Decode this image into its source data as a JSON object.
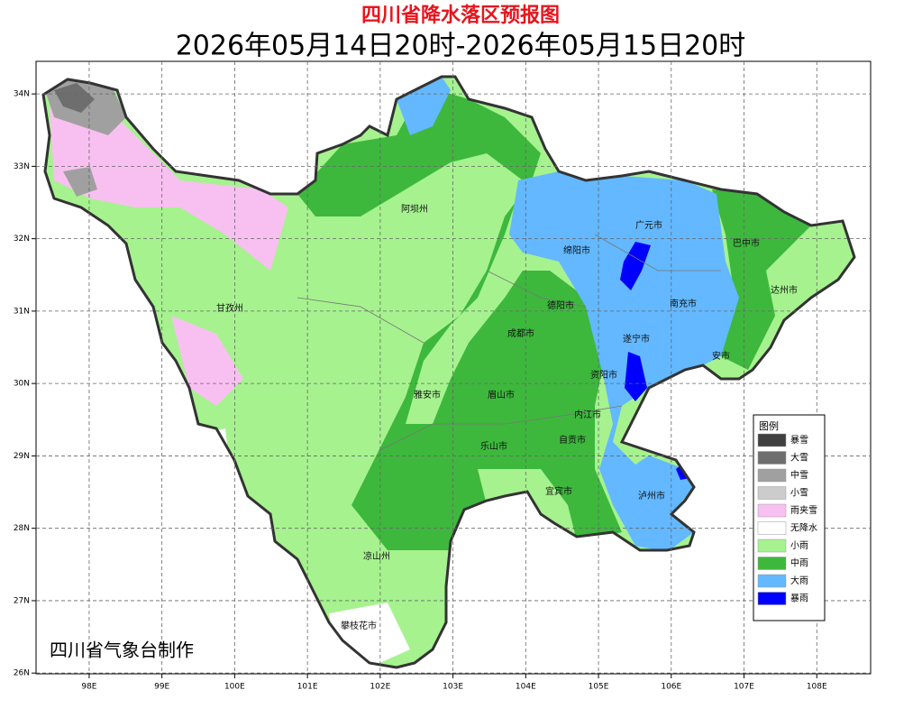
{
  "header": {
    "title": "四川省降水落区预报图",
    "subtitle": "2026年05月14日20时-2026年05月15日20时"
  },
  "map": {
    "xlim": [
      97.27,
      108.74
    ],
    "ylim": [
      25.99,
      34.45
    ],
    "grid": true,
    "xticks": [
      {
        "value": 98,
        "label": "98E"
      },
      {
        "value": 99,
        "label": "99E"
      },
      {
        "value": 100,
        "label": "100E"
      },
      {
        "value": 101,
        "label": "101E"
      },
      {
        "value": 102,
        "label": "102E"
      },
      {
        "value": 103,
        "label": "103E"
      },
      {
        "value": 104,
        "label": "104E"
      },
      {
        "value": 105,
        "label": "105E"
      },
      {
        "value": 106,
        "label": "106E"
      },
      {
        "value": 107,
        "label": "107E"
      },
      {
        "value": 108,
        "label": "108E"
      }
    ],
    "yticks": [
      {
        "value": 26,
        "label": "26N"
      },
      {
        "value": 27,
        "label": "27N"
      },
      {
        "value": 28,
        "label": "28N"
      },
      {
        "value": 29,
        "label": "29N"
      },
      {
        "value": 30,
        "label": "30N"
      },
      {
        "value": 31,
        "label": "31N"
      },
      {
        "value": 32,
        "label": "32N"
      },
      {
        "value": 33,
        "label": "33N"
      },
      {
        "value": 34,
        "label": "34N"
      }
    ],
    "cities": [
      "阿坝州",
      "甘孜州",
      "广元市",
      "巴中市",
      "绵阳市",
      "达州市",
      "南充市",
      "德阳市",
      "成都市",
      "遂宁市",
      "安市",
      "资阳市",
      "雅安市",
      "眉山市",
      "内江市",
      "自贡市",
      "乐山市",
      "宜宾市",
      "泸州市",
      "凉山州",
      "攀枝花市"
    ]
  },
  "legend": {
    "title": "图例",
    "items": [
      {
        "label": "暴雪",
        "color": "#404040"
      },
      {
        "label": "大雪",
        "color": "#6e6e6e"
      },
      {
        "label": "中雪",
        "color": "#a0a0a0"
      },
      {
        "label": "小雪",
        "color": "#cccccc"
      },
      {
        "label": "雨夹雪",
        "color": "#f8c0f0"
      },
      {
        "label": "无降水",
        "color": "#ffffff"
      },
      {
        "label": "小雨",
        "color": "#a6f28f"
      },
      {
        "label": "中雨",
        "color": "#3db83d"
      },
      {
        "label": "大雨",
        "color": "#63b8ff"
      },
      {
        "label": "暴雨",
        "color": "#0000fe"
      }
    ]
  },
  "credit": "四川省气象台制作"
}
